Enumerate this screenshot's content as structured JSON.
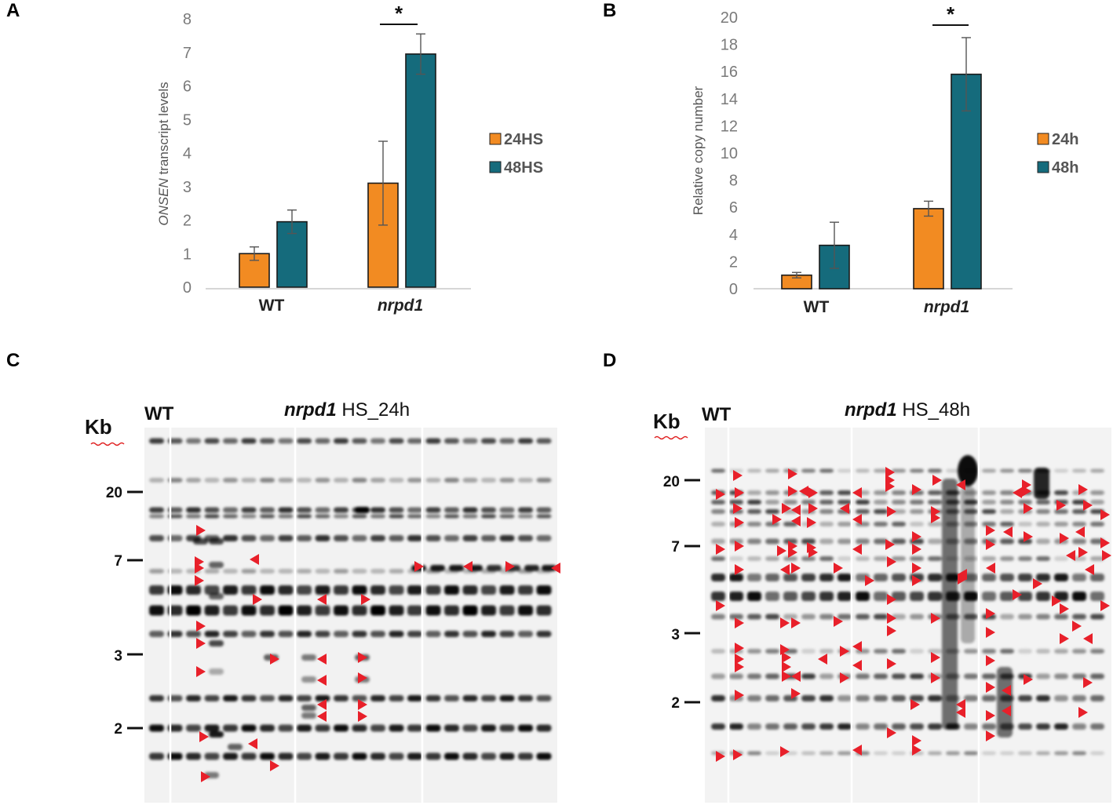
{
  "panels": {
    "a": "A",
    "b": "B",
    "c": "C",
    "d": "D"
  },
  "colors": {
    "h24": "#F28B22",
    "h48": "#156B7C",
    "arrow": "#E8202A"
  },
  "chart_data": [
    {
      "type": "bar",
      "ylabel_italic": "ONSEN",
      "ylabel_rest": " transcript levels",
      "ylim": [
        0,
        8
      ],
      "yticks": [
        0,
        1,
        2,
        3,
        4,
        5,
        6,
        7,
        8
      ],
      "categories": [
        "WT",
        "nrpd1"
      ],
      "series": [
        {
          "name": "24HS",
          "values": [
            1.0,
            3.1
          ],
          "errors": [
            0.2,
            1.25
          ]
        },
        {
          "name": "48HS",
          "values": [
            1.95,
            6.95
          ],
          "errors": [
            0.35,
            0.6
          ]
        }
      ],
      "significance": "*"
    },
    {
      "type": "bar",
      "ylabel": "Relative copy number",
      "ylim": [
        0,
        20
      ],
      "yticks": [
        0,
        2,
        4,
        6,
        8,
        10,
        12,
        14,
        16,
        18,
        20
      ],
      "categories": [
        "WT",
        "nrpd1"
      ],
      "series": [
        {
          "name": "24h",
          "values": [
            1.0,
            5.9
          ],
          "errors": [
            0.2,
            0.55
          ]
        },
        {
          "name": "48h",
          "values": [
            3.2,
            15.8
          ],
          "errors": [
            1.7,
            2.7
          ]
        }
      ],
      "significance": "*"
    }
  ],
  "gels": [
    {
      "wt": "WT",
      "title_italic": "nrpd1",
      "title_rest": " HS_24h",
      "kb": "Kb",
      "markers": [
        "20",
        "7",
        "3",
        "2"
      ]
    },
    {
      "wt": "WT",
      "title_italic": "nrpd1",
      "title_rest": " HS_48h",
      "kb": "Kb",
      "markers": [
        "20",
        "7",
        "3",
        "2"
      ]
    }
  ]
}
